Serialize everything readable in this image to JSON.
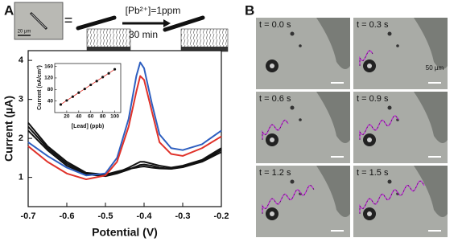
{
  "panel_labels": [
    "A",
    "B"
  ],
  "schematic": {
    "scale_bar": "20 µm",
    "equals": "=",
    "condition": "[Pb²⁺]=1ppm",
    "time": "30 min"
  },
  "chart_data": [
    {
      "type": "line",
      "xlabel": "Potential (V)",
      "ylabel": "Current (µA)",
      "x": [
        -0.7,
        -0.65,
        -0.6,
        -0.55,
        -0.5,
        -0.47,
        -0.44,
        -0.42,
        -0.41,
        -0.4,
        -0.38,
        -0.36,
        -0.33,
        -0.3,
        -0.25,
        -0.2
      ],
      "series": [
        {
          "color": "#111111",
          "values": [
            2.3,
            1.75,
            1.35,
            1.1,
            1.05,
            1.12,
            1.25,
            1.35,
            1.4,
            1.4,
            1.35,
            1.3,
            1.25,
            1.3,
            1.45,
            1.75
          ]
        },
        {
          "color": "#111111",
          "values": [
            2.2,
            1.7,
            1.3,
            1.08,
            1.03,
            1.1,
            1.2,
            1.28,
            1.32,
            1.33,
            1.3,
            1.25,
            1.22,
            1.27,
            1.42,
            1.7
          ]
        },
        {
          "color": "#111111",
          "values": [
            2.4,
            1.8,
            1.4,
            1.12,
            1.07,
            1.15,
            1.22,
            1.25,
            1.27,
            1.28,
            1.25,
            1.23,
            1.22,
            1.26,
            1.4,
            1.65
          ]
        },
        {
          "color": "#2e5fc0",
          "values": [
            1.9,
            1.55,
            1.25,
            1.05,
            1.1,
            1.5,
            2.5,
            3.6,
            3.95,
            3.8,
            2.9,
            2.1,
            1.75,
            1.7,
            1.85,
            2.2
          ]
        },
        {
          "color": "#e0322a",
          "values": [
            1.8,
            1.4,
            1.1,
            0.95,
            1.05,
            1.4,
            2.3,
            3.2,
            3.6,
            3.5,
            2.7,
            1.9,
            1.6,
            1.55,
            1.75,
            2.05
          ]
        }
      ],
      "xlim": [
        -0.7,
        -0.2
      ],
      "xticks": [
        -0.7,
        -0.6,
        -0.5,
        -0.4,
        -0.3,
        -0.2
      ],
      "ylim": [
        0.25,
        4.25
      ],
      "yticks": [
        1,
        2,
        3,
        4
      ]
    },
    {
      "type": "line",
      "xlabel": "[Lead] (ppb)",
      "ylabel": "Current (nA/cm²)",
      "x": [
        10,
        20,
        30,
        40,
        50,
        60,
        70,
        80,
        90,
        100
      ],
      "series": [
        {
          "color": "#e0322a",
          "marker_color": "#111111",
          "values": [
            28,
            42,
            55,
            69,
            82,
            96,
            109,
            123,
            136,
            150
          ]
        }
      ],
      "xlim": [
        0,
        110
      ],
      "xticks": [
        20,
        40,
        60,
        80,
        100
      ],
      "ylim": [
        0,
        170
      ],
      "yticks": [
        40,
        80,
        120,
        160
      ]
    }
  ],
  "frames": [
    "t = 0.0 s",
    "t = 0.3 s",
    "t = 0.6 s",
    "t = 0.9 s",
    "t = 1.2 s",
    "t = 1.5 s"
  ],
  "frame_scale_bar": "50 µm"
}
